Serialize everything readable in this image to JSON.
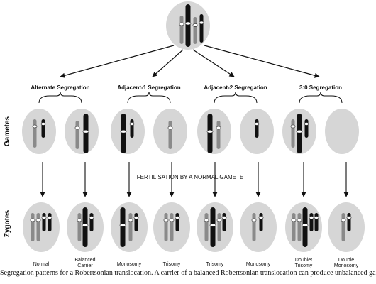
{
  "segregation_labels": [
    "Alternate Segregation",
    "Adjacent-1 Segregation",
    "Adjacent-2 Segregation",
    "3:0 Segregation"
  ],
  "row_labels": {
    "gametes": "Gametes",
    "zygotes": "Zygotes"
  },
  "fertilisation_label": "FERTILISATION BY A NORMAL GAMETE",
  "zygote_outcomes": [
    [
      "Normal"
    ],
    [
      "Balanced",
      "Carrier"
    ],
    [
      "Monosomy"
    ],
    [
      "Trisomy"
    ],
    [
      "Trisomy"
    ],
    [
      "Monosomy"
    ],
    [
      "Doublet",
      "Trisomy"
    ],
    [
      "Double",
      "Monosomy"
    ]
  ],
  "caption": "Segregation patterns for a Robertsonian translocation. A carrier of a balanced Robertsonian translocation can produce unbalanced ga",
  "colors": {
    "cell": "#d6d6d6",
    "normal_chromosome": "#8a8a8a",
    "translocation_chromosome": "#111111"
  }
}
